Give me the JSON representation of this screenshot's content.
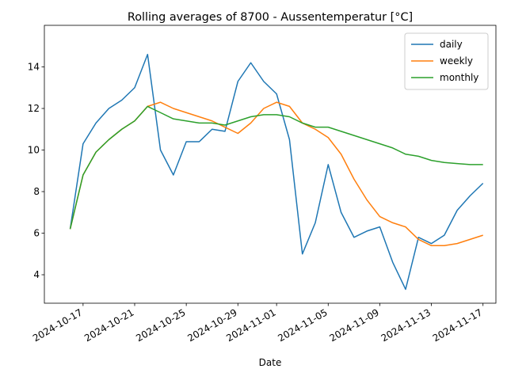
{
  "chart_data": {
    "type": "line",
    "title": "Rolling averages of 8700 - Aussentemperatur [°C]",
    "x_label": "Date",
    "x": [
      "2024-10-16",
      "2024-10-17",
      "2024-10-18",
      "2024-10-19",
      "2024-10-20",
      "2024-10-21",
      "2024-10-22",
      "2024-10-23",
      "2024-10-24",
      "2024-10-25",
      "2024-10-26",
      "2024-10-27",
      "2024-10-28",
      "2024-10-29",
      "2024-10-30",
      "2024-10-31",
      "2024-11-01",
      "2024-11-02",
      "2024-11-03",
      "2024-11-04",
      "2024-11-05",
      "2024-11-06",
      "2024-11-07",
      "2024-11-08",
      "2024-11-09",
      "2024-11-10",
      "2024-11-11",
      "2024-11-12",
      "2024-11-13",
      "2024-11-14",
      "2024-11-15",
      "2024-11-16",
      "2024-11-17"
    ],
    "series": [
      {
        "name": "daily",
        "color": "#1f77b4",
        "values": [
          6.2,
          10.3,
          11.3,
          12.0,
          12.4,
          13.0,
          14.6,
          10.0,
          8.8,
          10.4,
          10.4,
          11.0,
          10.9,
          13.3,
          14.2,
          13.3,
          12.7,
          10.5,
          5.0,
          6.5,
          9.3,
          7.0,
          5.8,
          6.1,
          6.3,
          4.6,
          3.3,
          5.8,
          5.5,
          5.9,
          7.1,
          7.8,
          8.4
        ]
      },
      {
        "name": "weekly",
        "color": "#ff7f0e",
        "values": [
          6.2,
          8.8,
          9.9,
          10.5,
          11.0,
          11.4,
          12.1,
          12.3,
          12.0,
          11.8,
          11.6,
          11.4,
          11.1,
          10.8,
          11.3,
          12.0,
          12.3,
          12.1,
          11.3,
          11.0,
          10.6,
          9.8,
          8.6,
          7.6,
          6.8,
          6.5,
          6.3,
          5.7,
          5.4,
          5.4,
          5.5,
          5.7,
          5.9
        ]
      },
      {
        "name": "monthly",
        "color": "#2ca02c",
        "values": [
          6.2,
          8.8,
          9.9,
          10.5,
          11.0,
          11.4,
          12.1,
          11.8,
          11.5,
          11.4,
          11.3,
          11.3,
          11.2,
          11.4,
          11.6,
          11.7,
          11.7,
          11.6,
          11.3,
          11.1,
          11.1,
          10.9,
          10.7,
          10.5,
          10.3,
          10.1,
          9.8,
          9.7,
          9.5,
          9.4,
          9.35,
          9.3,
          9.3
        ]
      }
    ],
    "xlim": [
      "2024-10-14",
      "2024-11-18"
    ],
    "xticks": [
      "2024-10-17",
      "2024-10-21",
      "2024-10-25",
      "2024-10-29",
      "2024-11-01",
      "2024-11-05",
      "2024-11-09",
      "2024-11-13",
      "2024-11-17"
    ],
    "ylim": [
      2.63,
      16.0
    ],
    "yticks": [
      4,
      6,
      8,
      10,
      12,
      14
    ],
    "legend": "upper right"
  }
}
